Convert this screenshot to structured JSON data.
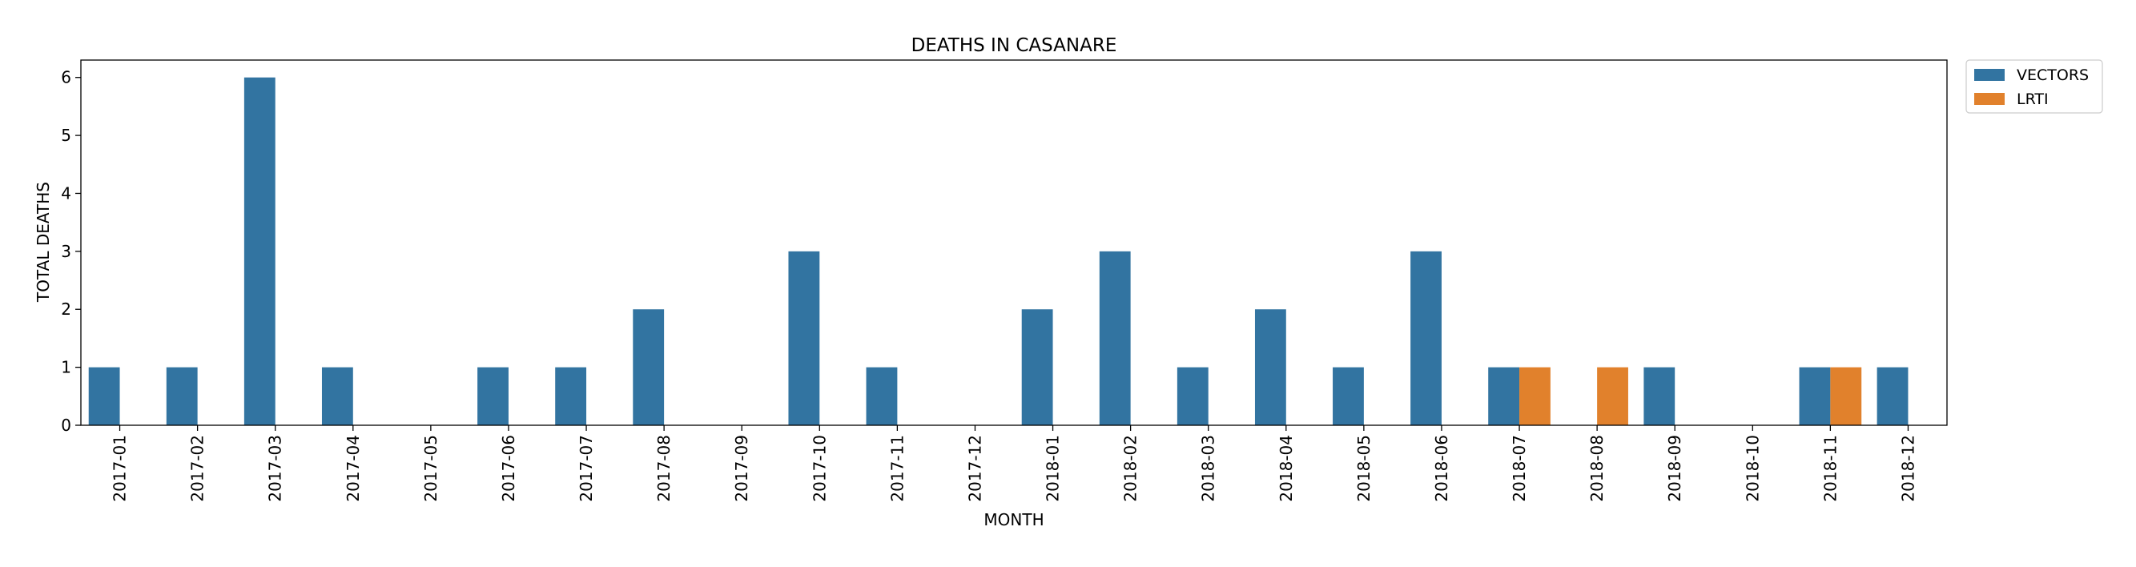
{
  "chart_data": {
    "type": "bar",
    "title": "DEATHS IN CASANARE",
    "xlabel": "MONTH",
    "ylabel": "TOTAL DEATHS",
    "ylim": [
      0,
      6.3
    ],
    "yticks": [
      0,
      1,
      2,
      3,
      4,
      5,
      6
    ],
    "grid": false,
    "legend_position": "outside top-right",
    "categories": [
      "2017-01",
      "2017-02",
      "2017-03",
      "2017-04",
      "2017-05",
      "2017-06",
      "2017-07",
      "2017-08",
      "2017-09",
      "2017-10",
      "2017-11",
      "2017-12",
      "2018-01",
      "2018-02",
      "2018-03",
      "2018-04",
      "2018-05",
      "2018-06",
      "2018-07",
      "2018-08",
      "2018-09",
      "2018-10",
      "2018-11",
      "2018-12"
    ],
    "series": [
      {
        "name": "VECTORS",
        "color": "#3274a1",
        "values": [
          1,
          1,
          6,
          1,
          0,
          1,
          1,
          2,
          0,
          3,
          1,
          0,
          2,
          3,
          1,
          2,
          1,
          3,
          1,
          0,
          1,
          0,
          1,
          1
        ]
      },
      {
        "name": "LRTI",
        "color": "#e1812c",
        "values": [
          0,
          0,
          0,
          0,
          0,
          0,
          0,
          0,
          0,
          0,
          0,
          0,
          0,
          0,
          0,
          0,
          0,
          0,
          1,
          1,
          0,
          0,
          1,
          0
        ]
      }
    ]
  }
}
